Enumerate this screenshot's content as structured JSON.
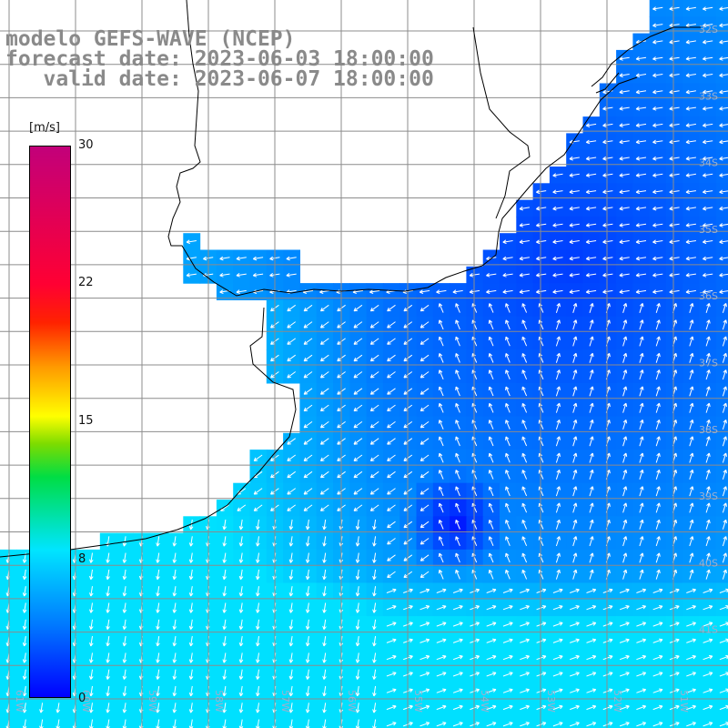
{
  "title": {
    "line1": "modelo GEFS-WAVE (NCEP)",
    "line2": "forecast date: 2023-06-03 18:00:00",
    "line3": "   valid date: 2023-06-07 18:00:00"
  },
  "colorbar": {
    "unit": "[m/s]",
    "min": 0,
    "max": 30,
    "ticks": [
      "30",
      "22",
      "15",
      "8",
      "0"
    ],
    "colors": [
      "#0000ff",
      "#0078ff",
      "#00e5ff",
      "#00dd44",
      "#ffff00",
      "#ff9900",
      "#ff0000",
      "#c2007a"
    ]
  },
  "map": {
    "land_color": "#ffffff",
    "grid_color": "#8c8c8c",
    "coast_color": "#000000",
    "arrow_color": "#ffffff",
    "lat_labels": [
      "32S",
      "33S",
      "34S",
      "35S",
      "36S",
      "37S",
      "38S",
      "39S",
      "40S",
      "41S"
    ],
    "lon_labels": [
      "61W",
      "60W",
      "59W",
      "58W",
      "57W",
      "56W",
      "55W",
      "54W",
      "53W",
      "52W",
      "51W"
    ]
  }
}
